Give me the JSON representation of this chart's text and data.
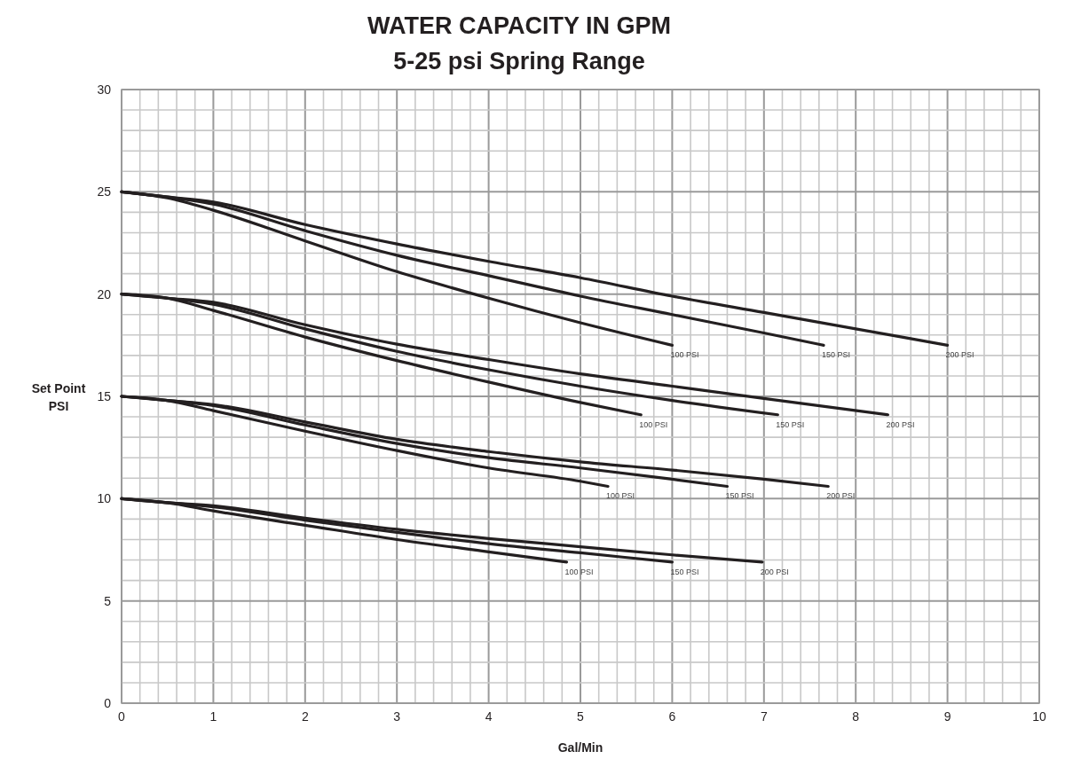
{
  "chart_data": {
    "type": "line",
    "title": "WATER CAPACITY IN GPM",
    "subtitle": "5-25 psi Spring Range",
    "xlabel": "Gal/Min",
    "ylabel": "Set Point PSI",
    "xlim": [
      0,
      10
    ],
    "ylim": [
      0,
      30
    ],
    "xticks": [
      0,
      {
        "value": 0.2,
        "label": null
      },
      {
        "value": 0.4,
        "label": null
      },
      {
        "value": 0.6,
        "label": null
      },
      {
        "value": 0.8,
        "label": null
      },
      1,
      {
        "value": 1.2,
        "label": null
      },
      {
        "value": 1.4,
        "label": null
      },
      {
        "value": 1.6,
        "label": null
      },
      {
        "value": 1.8,
        "label": null
      },
      2,
      {
        "value": 2.2,
        "label": null
      },
      {
        "value": 2.4,
        "label": null
      },
      {
        "value": 2.6,
        "label": null
      },
      {
        "value": 2.8,
        "label": null
      },
      3,
      {
        "value": 3.2,
        "label": null
      },
      {
        "value": 3.4,
        "label": null
      },
      {
        "value": 3.6,
        "label": null
      },
      {
        "value": 3.8,
        "label": null
      },
      4,
      {
        "value": 4.2,
        "label": null
      },
      {
        "value": 4.4,
        "label": null
      },
      {
        "value": 4.6,
        "label": null
      },
      {
        "value": 4.8,
        "label": null
      },
      5,
      {
        "value": 5.2,
        "label": null
      },
      {
        "value": 5.4,
        "label": null
      },
      {
        "value": 5.6,
        "label": null
      },
      {
        "value": 5.8,
        "label": null
      },
      6,
      {
        "value": 6.2,
        "label": null
      },
      {
        "value": 6.4,
        "label": null
      },
      {
        "value": 6.6,
        "label": null
      },
      {
        "value": 6.8,
        "label": null
      },
      7,
      {
        "value": 7.2,
        "label": null
      },
      {
        "value": 7.4,
        "label": null
      },
      {
        "value": 7.6,
        "label": null
      },
      {
        "value": 7.8,
        "label": null
      },
      8,
      {
        "value": 8.2,
        "label": null
      },
      {
        "value": 8.4,
        "label": null
      },
      {
        "value": 8.6,
        "label": null
      },
      {
        "value": 8.8,
        "label": null
      },
      9,
      {
        "value": 9.2,
        "label": null
      },
      {
        "value": 9.4,
        "label": null
      },
      {
        "value": 9.6,
        "label": null
      },
      {
        "value": 9.8,
        "label": null
      },
      10
    ],
    "yticks": [
      0,
      {
        "value": 1,
        "label": null
      },
      {
        "value": 2,
        "label": null
      },
      {
        "value": 3,
        "label": null
      },
      {
        "value": 4,
        "label": null
      },
      5,
      {
        "value": 6,
        "label": null
      },
      {
        "value": 7,
        "label": null
      },
      {
        "value": 8,
        "label": null
      },
      {
        "value": 9,
        "label": null
      },
      10,
      {
        "value": 11,
        "label": null
      },
      {
        "value": 12,
        "label": null
      },
      {
        "value": 13,
        "label": null
      },
      {
        "value": 14,
        "label": null
      },
      15,
      {
        "value": 16,
        "label": null
      },
      {
        "value": 17,
        "label": null
      },
      {
        "value": 18,
        "label": null
      },
      {
        "value": 19,
        "label": null
      },
      20,
      {
        "value": 21,
        "label": null
      },
      {
        "value": 22,
        "label": null
      },
      {
        "value": 23,
        "label": null
      },
      {
        "value": 24,
        "label": null
      },
      25,
      {
        "value": 26,
        "label": null
      },
      {
        "value": 27,
        "label": null
      },
      {
        "value": 28,
        "label": null
      },
      {
        "value": 29,
        "label": null
      },
      30
    ],
    "grid": true,
    "marker": "none",
    "line_style": "solid",
    "series": [
      {
        "name": "100 PSI",
        "color": "#231f20",
        "x": [
          0,
          0.5,
          1,
          2,
          3,
          4,
          5,
          6
        ],
        "values": [
          25,
          24.7,
          24.1,
          22.6,
          21.1,
          19.8,
          18.6,
          17.5
        ]
      },
      {
        "name": "150 PSI",
        "color": "#231f20",
        "x": [
          0,
          0.5,
          1,
          2,
          3,
          4,
          5,
          6,
          7,
          7.65
        ],
        "values": [
          25,
          24.75,
          24.4,
          23.1,
          21.9,
          20.9,
          19.9,
          19.0,
          18.1,
          17.5
        ]
      },
      {
        "name": "200 PSI",
        "color": "#231f20",
        "x": [
          0,
          0.5,
          1,
          2,
          3,
          4,
          5,
          6,
          7,
          8,
          9
        ],
        "values": [
          25,
          24.75,
          24.5,
          23.4,
          22.45,
          21.6,
          20.8,
          19.9,
          19.1,
          18.3,
          17.5
        ]
      },
      {
        "name": "100 PSI",
        "color": "#231f20",
        "x": [
          0,
          0.5,
          1,
          2,
          3,
          4,
          5,
          5.66
        ],
        "values": [
          20,
          19.8,
          19.2,
          17.9,
          16.75,
          15.7,
          14.7,
          14.1
        ]
      },
      {
        "name": "150 PSI",
        "color": "#231f20",
        "x": [
          0,
          0.5,
          1,
          2,
          3,
          4,
          5,
          6,
          7.15
        ],
        "values": [
          20,
          19.8,
          19.5,
          18.3,
          17.2,
          16.3,
          15.5,
          14.8,
          14.1
        ]
      },
      {
        "name": "200 PSI",
        "color": "#231f20",
        "x": [
          0,
          0.5,
          1,
          2,
          3,
          4,
          5,
          6,
          7,
          8.35
        ],
        "values": [
          20,
          19.8,
          19.6,
          18.5,
          17.55,
          16.8,
          16.1,
          15.5,
          14.9,
          14.1
        ]
      },
      {
        "name": "100 PSI",
        "color": "#231f20",
        "x": [
          0,
          0.5,
          1,
          2,
          3,
          4,
          5,
          5.3
        ],
        "values": [
          15,
          14.8,
          14.3,
          13.3,
          12.35,
          11.5,
          10.85,
          10.6
        ]
      },
      {
        "name": "150 PSI",
        "color": "#231f20",
        "x": [
          0,
          0.5,
          1,
          2,
          3,
          4,
          5,
          6,
          6.6
        ],
        "values": [
          15,
          14.8,
          14.55,
          13.6,
          12.7,
          12.0,
          11.5,
          10.95,
          10.6
        ]
      },
      {
        "name": "200 PSI",
        "color": "#231f20",
        "x": [
          0,
          0.5,
          1,
          2,
          3,
          4,
          5,
          6,
          7,
          7.7
        ],
        "values": [
          15,
          14.8,
          14.6,
          13.75,
          12.9,
          12.3,
          11.8,
          11.4,
          10.95,
          10.6
        ]
      },
      {
        "name": "100 PSI",
        "color": "#231f20",
        "x": [
          0,
          0.5,
          1,
          2,
          3,
          4,
          4.85
        ],
        "values": [
          10,
          9.8,
          9.4,
          8.7,
          8.0,
          7.4,
          6.9
        ]
      },
      {
        "name": "150 PSI",
        "color": "#231f20",
        "x": [
          0,
          0.5,
          1,
          2,
          3,
          4,
          5,
          6
        ],
        "values": [
          10,
          9.8,
          9.6,
          8.95,
          8.35,
          7.8,
          7.35,
          6.9
        ]
      },
      {
        "name": "200 PSI",
        "color": "#231f20",
        "x": [
          0,
          0.5,
          1,
          2,
          3,
          4,
          5,
          6,
          6.98
        ],
        "values": [
          10,
          9.8,
          9.65,
          9.05,
          8.5,
          8.05,
          7.65,
          7.25,
          6.9
        ]
      }
    ]
  }
}
